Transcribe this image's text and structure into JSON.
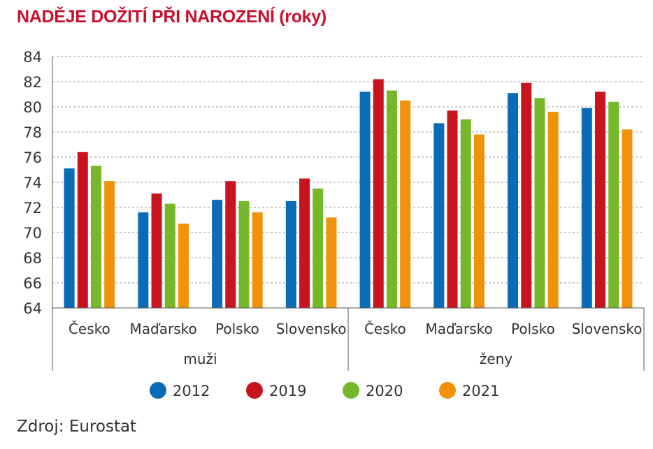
{
  "title": "NADĚJE DOŽITÍ PŘI NAROZENÍ (roky)",
  "source": "Zdroj: Eurostat",
  "chart_data": {
    "type": "bar",
    "title": "NADĚJE DOŽITÍ PŘI NAROZENÍ (roky)",
    "xlabel": "",
    "ylabel": "",
    "ylim": [
      64,
      84
    ],
    "yticks": [
      64,
      66,
      68,
      70,
      72,
      74,
      76,
      78,
      80,
      82,
      84
    ],
    "grid": true,
    "legend_position": "bottom",
    "groups": [
      {
        "label": "muži",
        "categories": [
          "Česko",
          "Maďarsko",
          "Polsko",
          "Slovensko"
        ]
      },
      {
        "label": "ženy",
        "categories": [
          "Česko",
          "Maďarsko",
          "Polsko",
          "Slovensko"
        ]
      }
    ],
    "categories": [
      "Česko",
      "Maďarsko",
      "Polsko",
      "Slovensko",
      "Česko",
      "Maďarsko",
      "Polsko",
      "Slovensko"
    ],
    "series": [
      {
        "name": "2012",
        "color": "#0a6bb7",
        "values": [
          75.1,
          71.6,
          72.6,
          72.5,
          81.2,
          78.7,
          81.1,
          79.9
        ]
      },
      {
        "name": "2019",
        "color": "#c8141e",
        "values": [
          76.4,
          73.1,
          74.1,
          74.3,
          82.2,
          79.7,
          81.9,
          81.2
        ]
      },
      {
        "name": "2020",
        "color": "#77b82a",
        "values": [
          75.3,
          72.3,
          72.5,
          73.5,
          81.3,
          79.0,
          80.7,
          80.4
        ]
      },
      {
        "name": "2021",
        "color": "#f0930a",
        "values": [
          74.1,
          70.7,
          71.6,
          71.2,
          80.5,
          77.8,
          79.6,
          78.2
        ]
      }
    ]
  }
}
